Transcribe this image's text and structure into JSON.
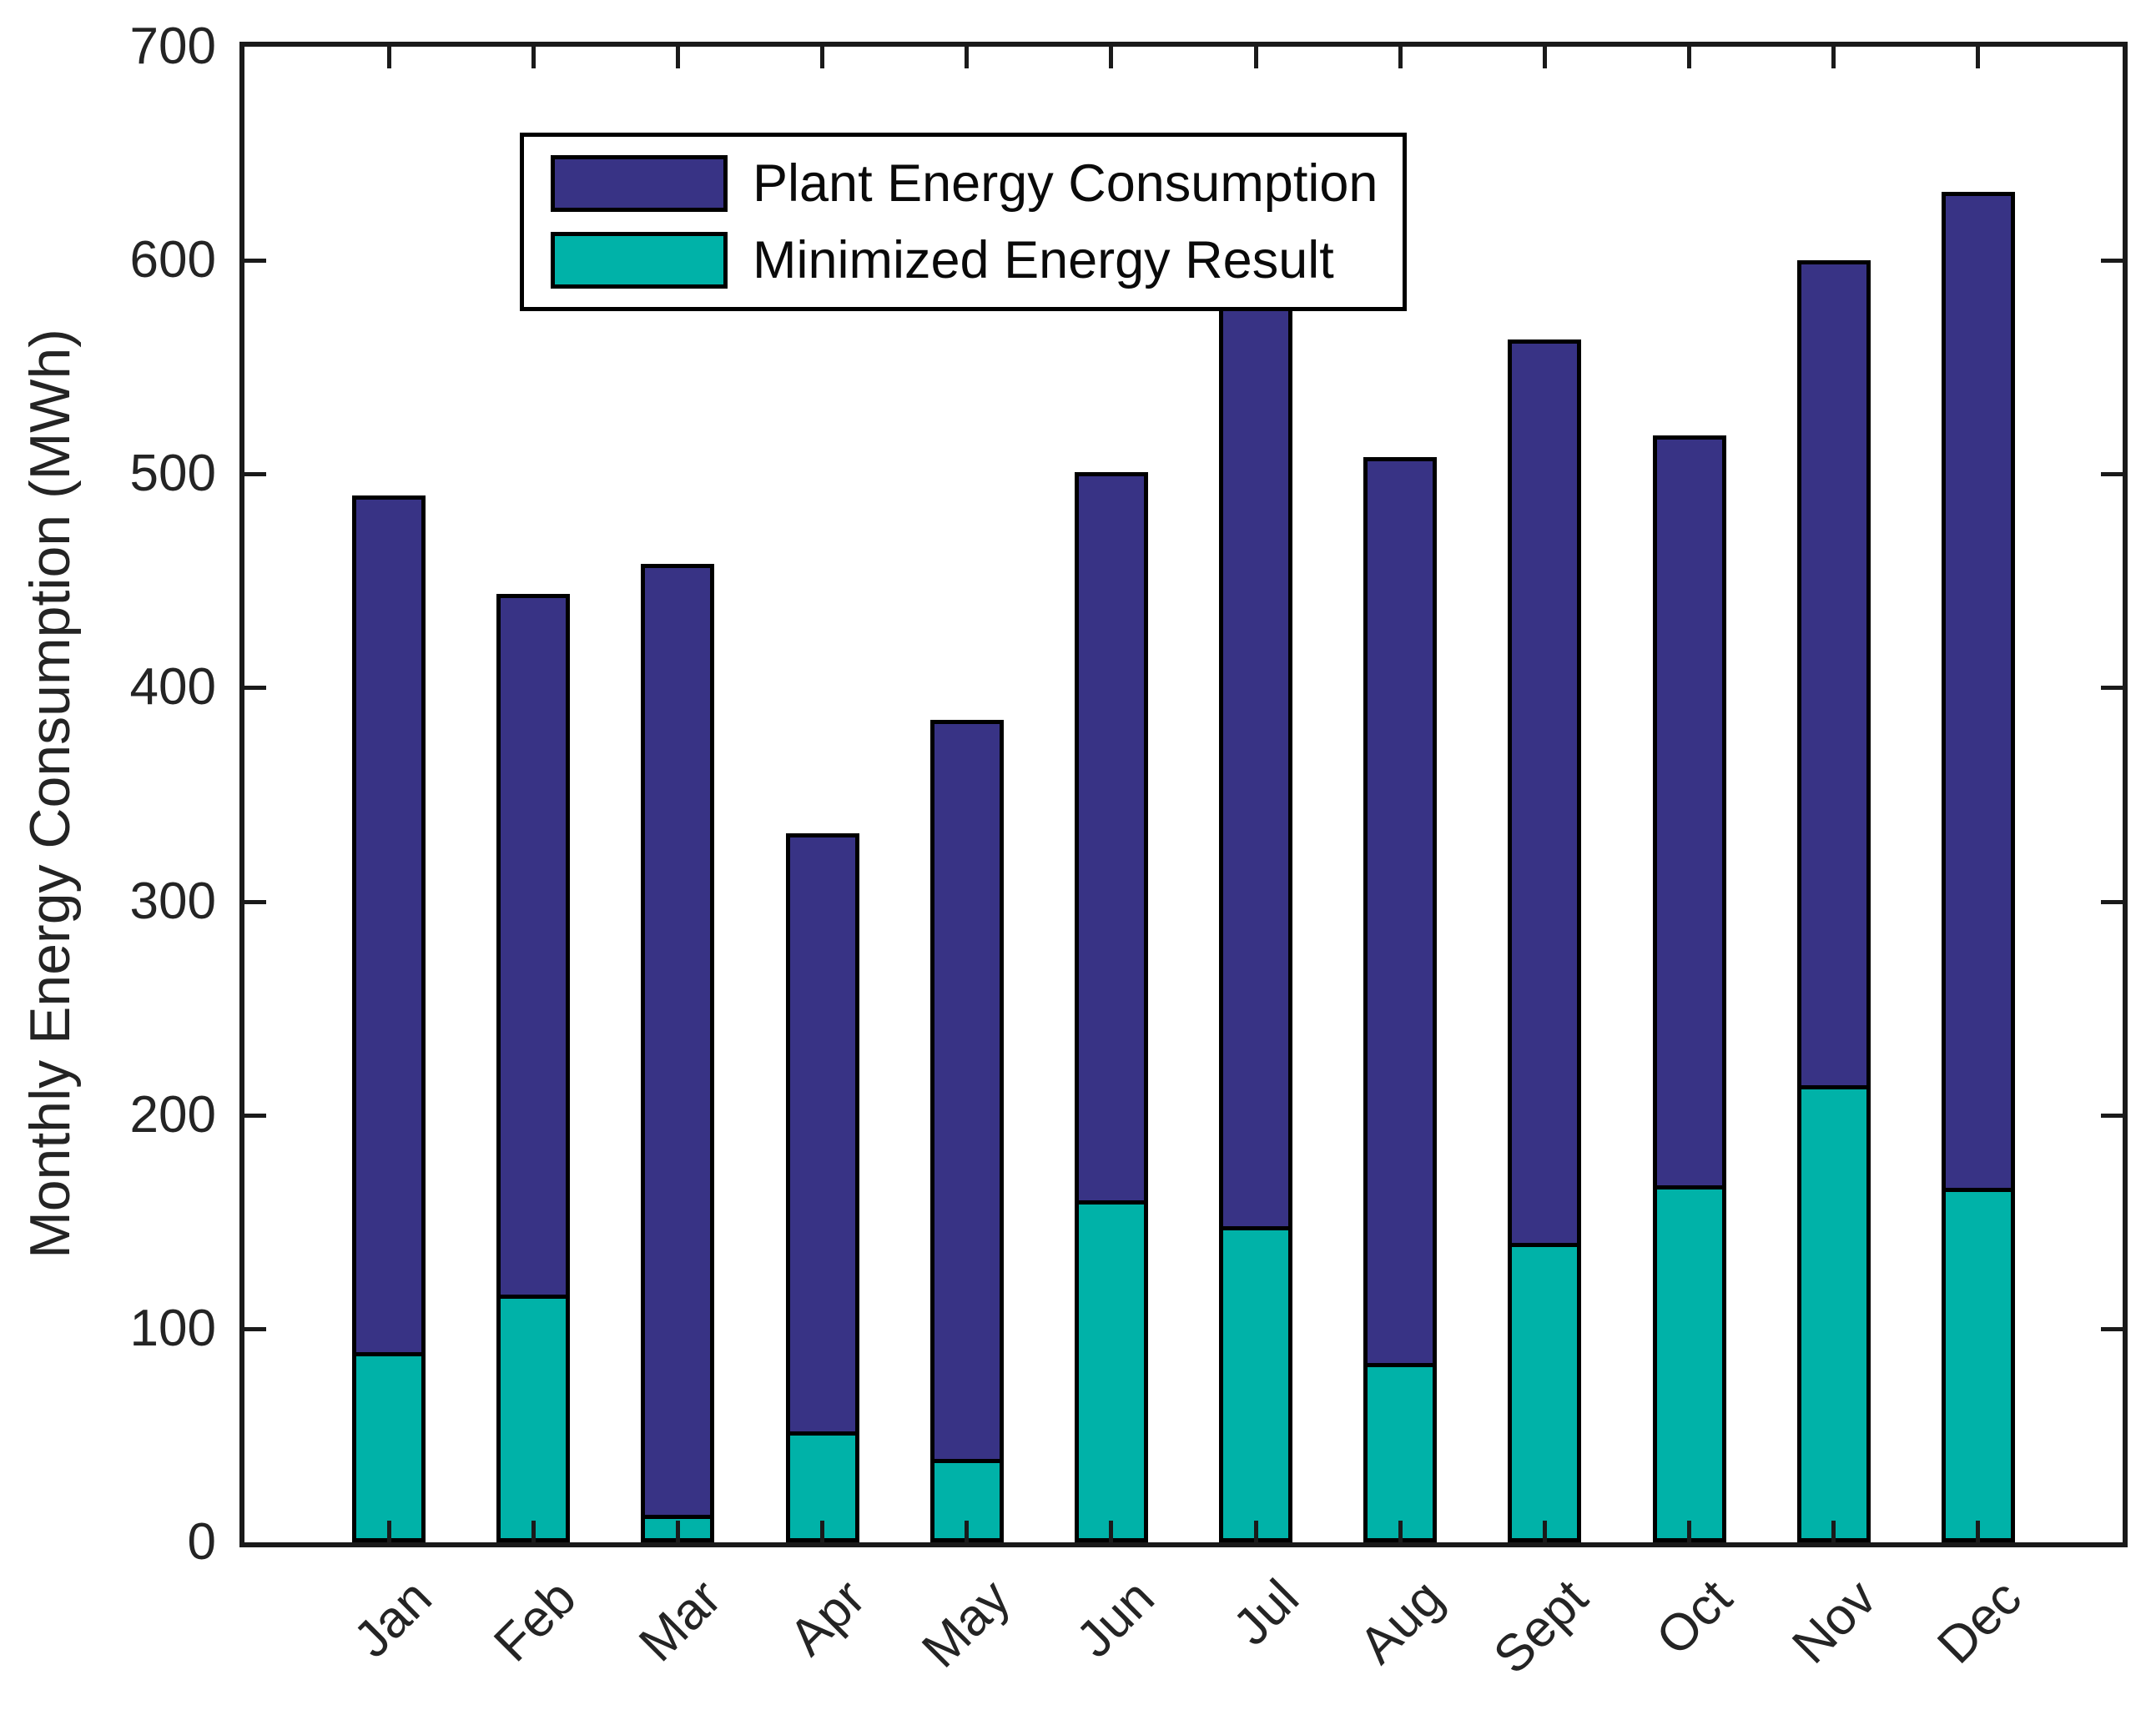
{
  "chart_data": {
    "type": "bar",
    "mode": "overlay",
    "title": "",
    "xlabel": "",
    "ylabel": "Monthly Energy Consumption (MWh)",
    "ylim": [
      0,
      700
    ],
    "yticks": [
      0,
      100,
      200,
      300,
      400,
      500,
      600,
      700
    ],
    "categories": [
      "Jan",
      "Feb",
      "Mar",
      "Apr",
      "May",
      "Jun",
      "Jul",
      "Aug",
      "Sept",
      "Oct",
      "Nov",
      "Dec"
    ],
    "series": [
      {
        "name": "Plant Energy Consumption",
        "color": "#383385",
        "values": [
          490,
          444,
          458,
          332,
          385,
          501,
          640,
          508,
          563,
          518,
          600,
          632
        ]
      },
      {
        "name": "Minimized Energy Result",
        "color": "#00B2A8",
        "values": [
          89,
          116,
          13,
          52,
          39,
          160,
          148,
          84,
          140,
          167,
          214,
          166
        ]
      }
    ],
    "legend_position": "top-left",
    "grid": false,
    "axis_color": "#1a1a1a",
    "background": "#ffffff"
  }
}
